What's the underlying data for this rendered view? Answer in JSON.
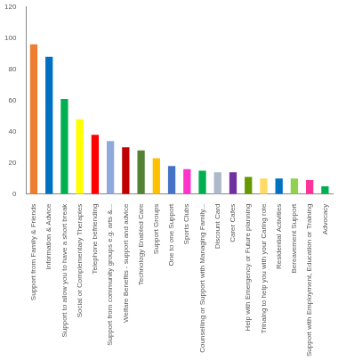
{
  "chart_data": {
    "type": "bar",
    "categories": [
      "Support from Family & Friends",
      "Information & Advice",
      "Support to allow you to have a short break",
      "Social or Complementary Therapies",
      "Telephone befriending",
      "Support from community groups e.g. arts &...",
      "Welfare Benefits - support and advice",
      "Technology Enabled Care",
      "Support Groups",
      "One to one Support",
      "Sports Clubs",
      "Counselling or Support with Managing Family...",
      "Discount Card",
      "Carer Cafes",
      "Help with Emergency or Future planning",
      "Trinaing to help you with your Caring role",
      "Residential Activities",
      "Bereavement Support",
      "Support with Employment, Education or Training",
      "Advocacy"
    ],
    "values": [
      96,
      88,
      61,
      48,
      38,
      34,
      30,
      28,
      23,
      18,
      16,
      15,
      14,
      14,
      11,
      10,
      10,
      10,
      9,
      5
    ],
    "colors": [
      "#ed7d31",
      "#0070c0",
      "#00b050",
      "#ffff00",
      "#ff0000",
      "#8ea9db",
      "#c00000",
      "#548235",
      "#ffc000",
      "#4472c4",
      "#ff33cc",
      "#00b050",
      "#adb9ca",
      "#7030a0",
      "#669900",
      "#ffd966",
      "#0070c0",
      "#92d050",
      "#ff3399",
      "#00b050"
    ],
    "ylim": [
      0,
      120
    ],
    "yticks": [
      0,
      20,
      40,
      60,
      80,
      100,
      120
    ],
    "grid": false
  }
}
